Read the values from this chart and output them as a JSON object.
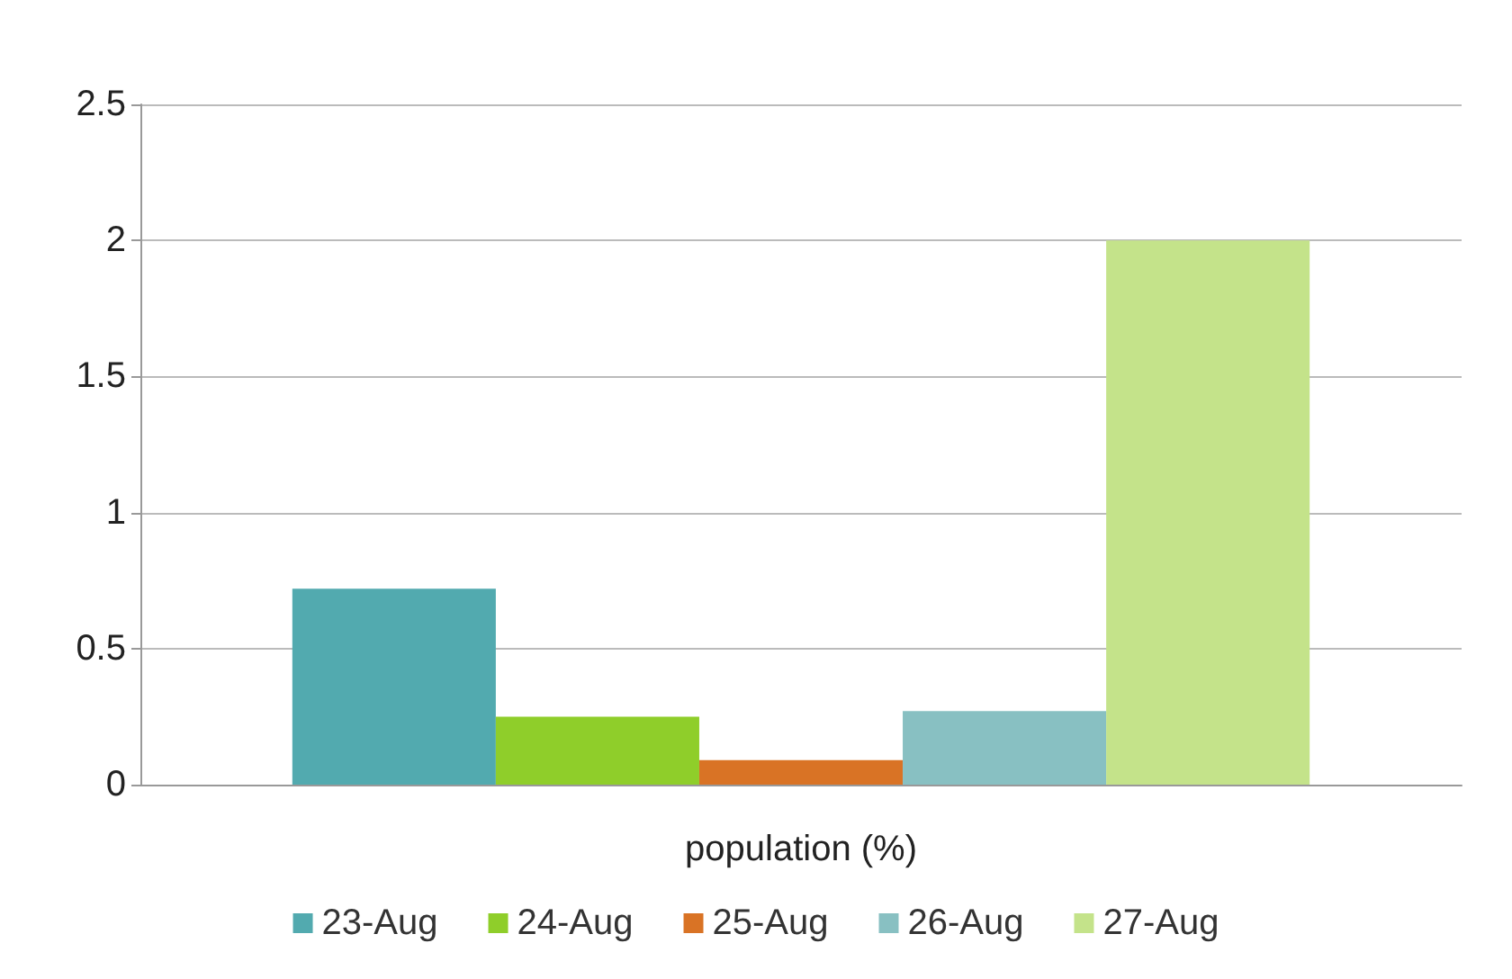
{
  "chart_data": {
    "type": "bar",
    "xlabel": "population (%)",
    "categories": [
      null
    ],
    "series": [
      {
        "name": "23-Aug",
        "color": "#52aaaf",
        "values": [
          0.72
        ]
      },
      {
        "name": "24-Aug",
        "color": "#8fce2a",
        "values": [
          0.25
        ]
      },
      {
        "name": "25-Aug",
        "color": "#d97325",
        "values": [
          0.09
        ]
      },
      {
        "name": "26-Aug",
        "color": "#88c0c2",
        "values": [
          0.27
        ]
      },
      {
        "name": "27-Aug",
        "color": "#c4e38a",
        "values": [
          2.0
        ]
      }
    ],
    "ylim": [
      0,
      2.5
    ],
    "yticks": [
      0,
      0.5,
      1,
      1.5,
      2,
      2.5
    ],
    "grid": "y",
    "legend": "bottom"
  }
}
